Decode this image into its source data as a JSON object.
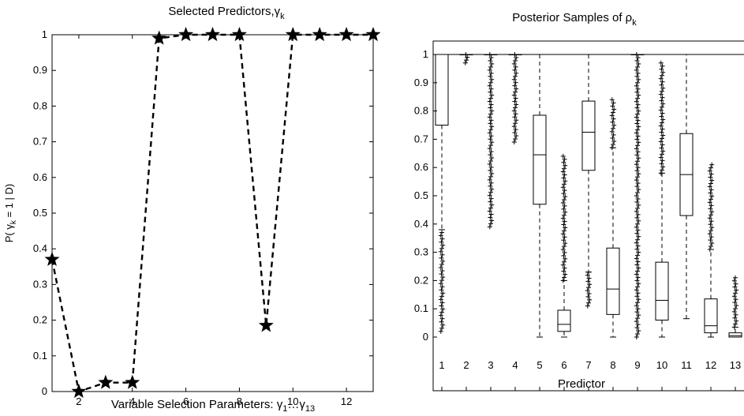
{
  "chart_data": [
    {
      "type": "line",
      "title": "Selected Predictors,",
      "title_symbol": "γ",
      "title_sub": "k",
      "xlabel": "Variable Selection Parameters: ",
      "xlabel_symbol": "γ",
      "xlabel_sub1": "1",
      "xlabel_mid": "…",
      "xlabel_sub2": "13",
      "ylabel": "P( ",
      "ylabel_symbol": "γ",
      "ylabel_sub": "k",
      "ylabel_rest": " = 1 | D)",
      "xlim": [
        1,
        13
      ],
      "ylim": [
        0,
        1
      ],
      "xticks": [
        2,
        4,
        6,
        8,
        10,
        12
      ],
      "yticks": [
        0,
        0.1,
        0.2,
        0.3,
        0.4,
        0.5,
        0.6,
        0.7,
        0.8,
        0.9,
        1
      ],
      "ytick_labels": [
        "0",
        "0.1",
        "0.2",
        "0.3",
        "0.4",
        "0.5",
        "0.6",
        "0.7",
        "0.8",
        "0.9",
        "1"
      ],
      "line_style": "dashed",
      "marker": "star",
      "x": [
        1,
        2,
        3,
        4,
        5,
        6,
        7,
        8,
        9,
        10,
        11,
        12,
        13
      ],
      "values": [
        0.37,
        0.0,
        0.025,
        0.025,
        0.99,
        1.0,
        1.0,
        1.0,
        0.185,
        1.0,
        1.0,
        1.0,
        1.0
      ]
    },
    {
      "type": "box",
      "title": "Posterior Samples of ",
      "title_symbol": "ρ",
      "title_sub": "k",
      "xlabel": "Predictor",
      "categories": [
        "1",
        "2",
        "3",
        "4",
        "5",
        "6",
        "7",
        "8",
        "9",
        "10",
        "11",
        "12",
        "13"
      ],
      "ylim": [
        0,
        1
      ],
      "yticks": [
        0,
        0.1,
        0.2,
        0.3,
        0.4,
        0.5,
        0.6,
        0.7,
        0.8,
        0.9,
        1
      ],
      "ytick_labels": [
        "0",
        "0.1",
        "0.2",
        "0.3",
        "0.4",
        "0.5",
        "0.6",
        "0.7",
        "0.8",
        "0.9",
        "1"
      ],
      "boxes": [
        {
          "q1": 0.75,
          "median": 1.0,
          "q3": 1.0,
          "whisker_low": 0.38,
          "whisker_high": 1.0,
          "outlier_range": [
            0.02,
            0.37
          ]
        },
        {
          "q1": 1.0,
          "median": 1.0,
          "q3": 1.0,
          "whisker_low": 1.0,
          "whisker_high": 1.0,
          "outlier_range": [
            0.97,
            1.0
          ]
        },
        {
          "q1": 1.0,
          "median": 1.0,
          "q3": 1.0,
          "whisker_low": 1.0,
          "whisker_high": 1.0,
          "outlier_range": [
            0.39,
            1.0
          ]
        },
        {
          "q1": 1.0,
          "median": 1.0,
          "q3": 1.0,
          "whisker_low": 1.0,
          "whisker_high": 1.0,
          "outlier_range": [
            0.69,
            1.0
          ]
        },
        {
          "q1": 0.47,
          "median": 0.645,
          "q3": 0.785,
          "whisker_low": 0.0,
          "whisker_high": 1.0,
          "outlier_range": null
        },
        {
          "q1": 0.02,
          "median": 0.045,
          "q3": 0.095,
          "whisker_low": 0.0,
          "whisker_high": 0.2,
          "outlier_range": [
            0.2,
            0.64
          ]
        },
        {
          "q1": 0.59,
          "median": 0.725,
          "q3": 0.835,
          "whisker_low": 0.23,
          "whisker_high": 1.0,
          "outlier_range": [
            0.11,
            0.23
          ]
        },
        {
          "q1": 0.08,
          "median": 0.17,
          "q3": 0.315,
          "whisker_low": 0.0,
          "whisker_high": 0.67,
          "outlier_range": [
            0.67,
            0.84
          ]
        },
        {
          "q1": 1.0,
          "median": 1.0,
          "q3": 1.0,
          "whisker_low": 1.0,
          "whisker_high": 1.0,
          "outlier_range": [
            0.0,
            1.0
          ]
        },
        {
          "q1": 0.06,
          "median": 0.13,
          "q3": 0.265,
          "whisker_low": 0.0,
          "whisker_high": 0.58,
          "outlier_range": [
            0.58,
            0.97
          ]
        },
        {
          "q1": 0.43,
          "median": 0.575,
          "q3": 0.72,
          "whisker_low": 0.065,
          "whisker_high": 1.0,
          "outlier_range": null
        },
        {
          "q1": 0.015,
          "median": 0.04,
          "q3": 0.135,
          "whisker_low": 0.0,
          "whisker_high": 0.31,
          "outlier_range": [
            0.31,
            0.61
          ]
        },
        {
          "q1": 0.0,
          "median": 0.005,
          "q3": 0.015,
          "whisker_low": 0.0,
          "whisker_high": 0.035,
          "outlier_range": [
            0.035,
            0.21
          ]
        }
      ]
    }
  ]
}
